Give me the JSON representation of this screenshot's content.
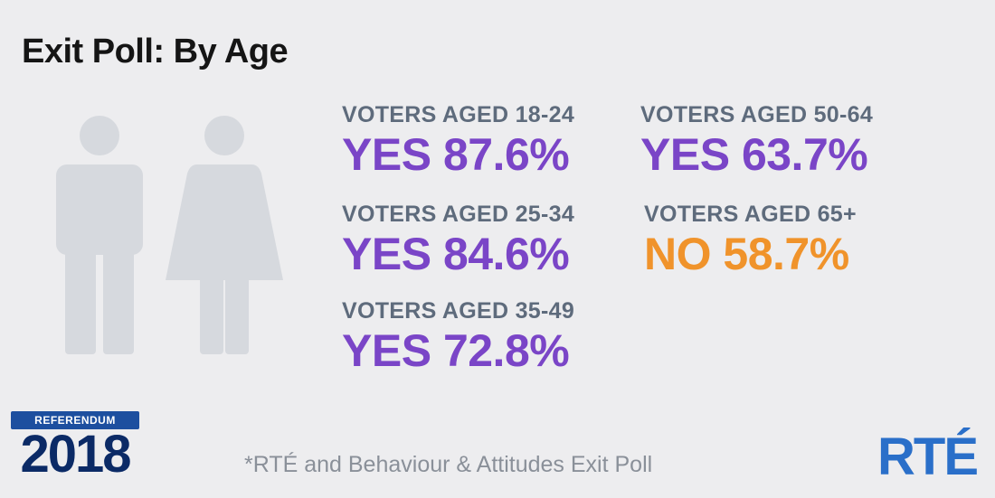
{
  "title": "Exit Poll: By Age",
  "colors": {
    "yes": "#7a45c7",
    "no": "#f0932b",
    "label": "#5e6b7c",
    "figure": "#d6d9de"
  },
  "stats": [
    {
      "label": "VOTERS AGED 18-24",
      "value": "YES 87.6%",
      "result": "yes"
    },
    {
      "label": "VOTERS AGED 25-34",
      "value": "YES 84.6%",
      "result": "yes"
    },
    {
      "label": "VOTERS AGED 35-49",
      "value": "YES 72.8%",
      "result": "yes"
    },
    {
      "label": "VOTERS AGED 50-64",
      "value": "YES 63.7%",
      "result": "yes"
    },
    {
      "label": "VOTERS AGED 65+",
      "value": "NO 58.7%",
      "result": "no"
    }
  ],
  "badge": {
    "banner": "REFERENDUM",
    "year": "2018"
  },
  "footnote": "*RTÉ and Behaviour & Attitudes Exit Poll",
  "logo": "RTÉ",
  "icons": [
    "man-icon",
    "woman-icon"
  ]
}
